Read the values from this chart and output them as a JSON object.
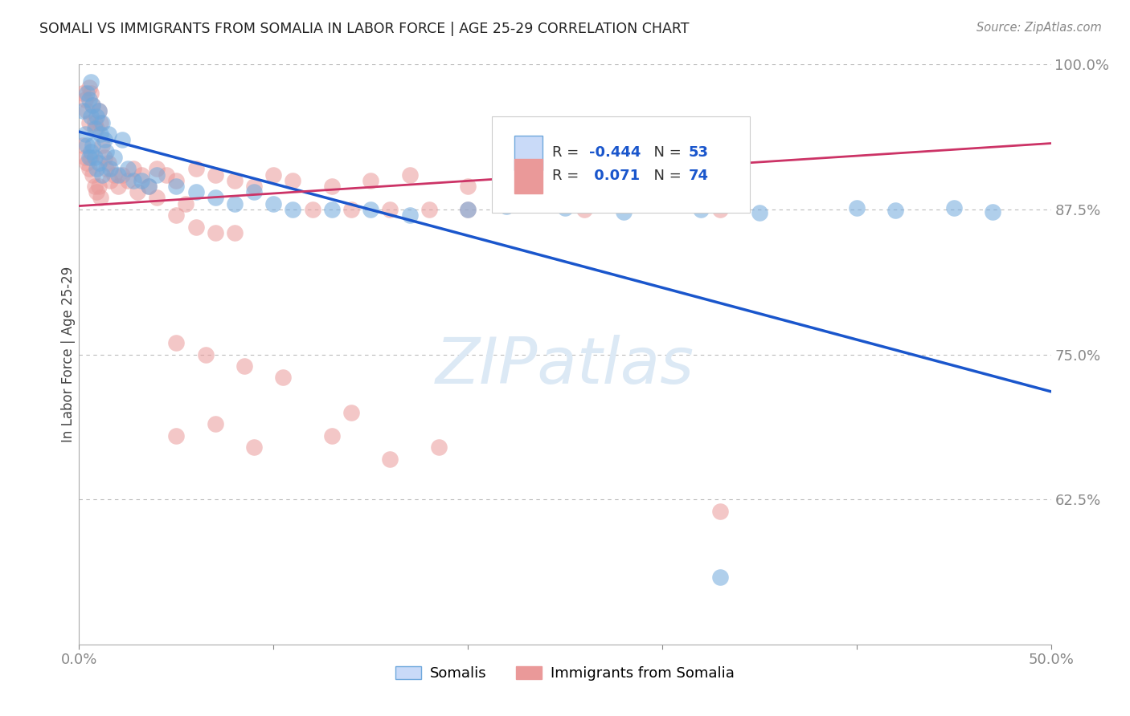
{
  "title": "SOMALI VS IMMIGRANTS FROM SOMALIA IN LABOR FORCE | AGE 25-29 CORRELATION CHART",
  "source": "Source: ZipAtlas.com",
  "ylabel": "In Labor Force | Age 25-29",
  "x_min": 0.0,
  "x_max": 0.5,
  "y_min": 0.5,
  "y_max": 1.0,
  "y_tick_labels": [
    "",
    "62.5%",
    "75.0%",
    "87.5%",
    "100.0%"
  ],
  "somali_color": "#6fa8dc",
  "somali_fill": "#c9daf8",
  "immigrant_color": "#ea9999",
  "immigrant_fill": "#fce5cd",
  "blue_line_color": "#1a56cc",
  "pink_line_color": "#cc3366",
  "somali_R": -0.444,
  "somali_N": 53,
  "immigrant_R": 0.071,
  "immigrant_N": 74,
  "blue_line_x0": 0.0,
  "blue_line_y0": 0.942,
  "blue_line_x1": 0.5,
  "blue_line_y1": 0.718,
  "pink_line_x0": 0.0,
  "pink_line_y0": 0.878,
  "pink_line_x1": 0.5,
  "pink_line_y1": 0.932,
  "watermark": "ZIPatlas",
  "somali_x": [
    0.002,
    0.003,
    0.004,
    0.004,
    0.005,
    0.005,
    0.006,
    0.006,
    0.006,
    0.007,
    0.007,
    0.008,
    0.008,
    0.009,
    0.009,
    0.01,
    0.01,
    0.011,
    0.012,
    0.012,
    0.013,
    0.014,
    0.015,
    0.016,
    0.018,
    0.02,
    0.022,
    0.025,
    0.028,
    0.032,
    0.036,
    0.04,
    0.05,
    0.06,
    0.07,
    0.08,
    0.09,
    0.1,
    0.11,
    0.13,
    0.15,
    0.17,
    0.2,
    0.22,
    0.25,
    0.28,
    0.32,
    0.35,
    0.4,
    0.42,
    0.45,
    0.47,
    0.33
  ],
  "somali_y": [
    0.96,
    0.94,
    0.975,
    0.93,
    0.97,
    0.92,
    0.985,
    0.955,
    0.925,
    0.965,
    0.93,
    0.945,
    0.92,
    0.955,
    0.91,
    0.96,
    0.915,
    0.94,
    0.95,
    0.905,
    0.935,
    0.925,
    0.94,
    0.91,
    0.92,
    0.905,
    0.935,
    0.91,
    0.9,
    0.9,
    0.895,
    0.905,
    0.895,
    0.89,
    0.885,
    0.88,
    0.89,
    0.88,
    0.875,
    0.875,
    0.875,
    0.87,
    0.875,
    0.878,
    0.876,
    0.873,
    0.875,
    0.872,
    0.876,
    0.874,
    0.876,
    0.873,
    0.558
  ],
  "immigrant_x": [
    0.002,
    0.002,
    0.003,
    0.003,
    0.004,
    0.004,
    0.005,
    0.005,
    0.005,
    0.006,
    0.006,
    0.007,
    0.007,
    0.008,
    0.008,
    0.009,
    0.009,
    0.01,
    0.01,
    0.011,
    0.011,
    0.012,
    0.013,
    0.014,
    0.015,
    0.016,
    0.018,
    0.02,
    0.022,
    0.025,
    0.028,
    0.032,
    0.036,
    0.04,
    0.045,
    0.05,
    0.06,
    0.07,
    0.08,
    0.09,
    0.1,
    0.11,
    0.13,
    0.15,
    0.17,
    0.2,
    0.22,
    0.25,
    0.05,
    0.06,
    0.07,
    0.08,
    0.12,
    0.14,
    0.16,
    0.18,
    0.2,
    0.26,
    0.14,
    0.05,
    0.07,
    0.09,
    0.13,
    0.16,
    0.185,
    0.05,
    0.065,
    0.085,
    0.105,
    0.03,
    0.04,
    0.055,
    0.33,
    0.33
  ],
  "immigrant_y": [
    0.975,
    0.93,
    0.97,
    0.92,
    0.96,
    0.915,
    0.98,
    0.95,
    0.91,
    0.975,
    0.92,
    0.965,
    0.905,
    0.95,
    0.895,
    0.945,
    0.89,
    0.96,
    0.895,
    0.95,
    0.885,
    0.93,
    0.92,
    0.91,
    0.915,
    0.9,
    0.905,
    0.895,
    0.905,
    0.9,
    0.91,
    0.905,
    0.895,
    0.91,
    0.905,
    0.9,
    0.91,
    0.905,
    0.9,
    0.895,
    0.905,
    0.9,
    0.895,
    0.9,
    0.905,
    0.895,
    0.9,
    0.905,
    0.87,
    0.86,
    0.855,
    0.855,
    0.875,
    0.875,
    0.875,
    0.875,
    0.875,
    0.875,
    0.7,
    0.68,
    0.69,
    0.67,
    0.68,
    0.66,
    0.67,
    0.76,
    0.75,
    0.74,
    0.73,
    0.89,
    0.885,
    0.88,
    0.875,
    0.615
  ]
}
